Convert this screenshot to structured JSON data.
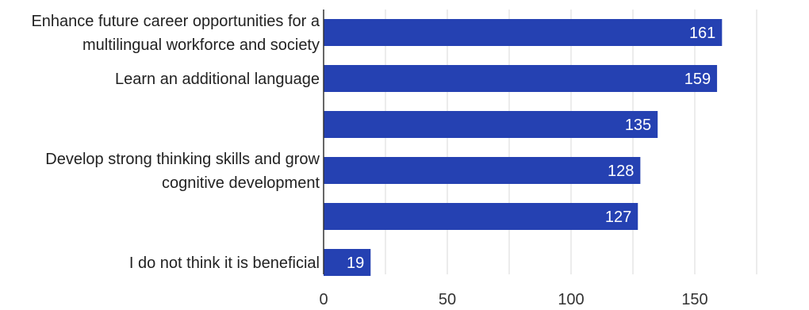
{
  "chart_data": {
    "type": "bar",
    "orientation": "horizontal",
    "title": "",
    "xlabel": "",
    "ylabel": "",
    "categories": [
      [
        "Enhance future career opportunities for a",
        "multilingual workforce and society"
      ],
      [
        "Learn an additional language"
      ],
      [],
      [
        "Develop strong thinking skills and grow",
        "cognitive development"
      ],
      [],
      [
        "I do not think it is beneficial"
      ]
    ],
    "values": [
      161,
      159,
      135,
      128,
      127,
      19
    ],
    "value_labels": [
      "161",
      "159",
      "135",
      "128",
      "127",
      "19"
    ],
    "xlim": [
      0,
      175
    ],
    "xticks": [
      0,
      50,
      100,
      150
    ],
    "xtick_labels": [
      "0",
      "50",
      "100",
      "150"
    ],
    "grid": true,
    "legend": "none",
    "colors": {
      "bar": "#2541b2",
      "grid": "#d9d9d9",
      "axis": "#333333"
    }
  }
}
